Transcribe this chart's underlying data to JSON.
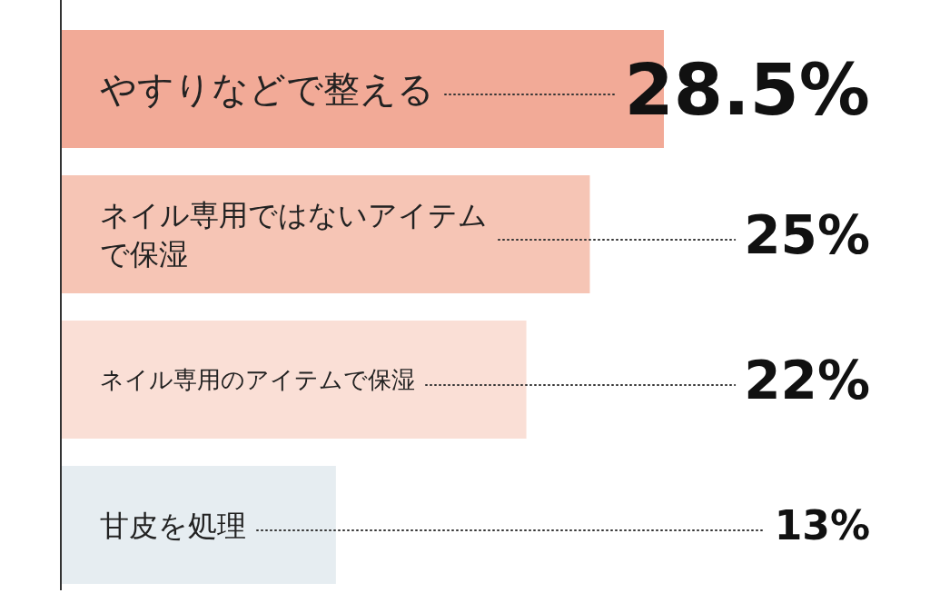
{
  "chart_data": {
    "type": "bar",
    "orientation": "horizontal",
    "categories": [
      "やすりなどで整える",
      "ネイル専用ではないアイテムで保湿",
      "ネイル専用のアイテムで保湿",
      "甘皮を処理"
    ],
    "values": [
      28.5,
      25,
      22,
      13
    ],
    "colors": [
      "#f2aa97",
      "#f6c5b5",
      "#fadfd6",
      "#e6edf1"
    ],
    "value_labels": [
      "28.5%",
      "25%",
      "22%",
      "13%"
    ]
  }
}
